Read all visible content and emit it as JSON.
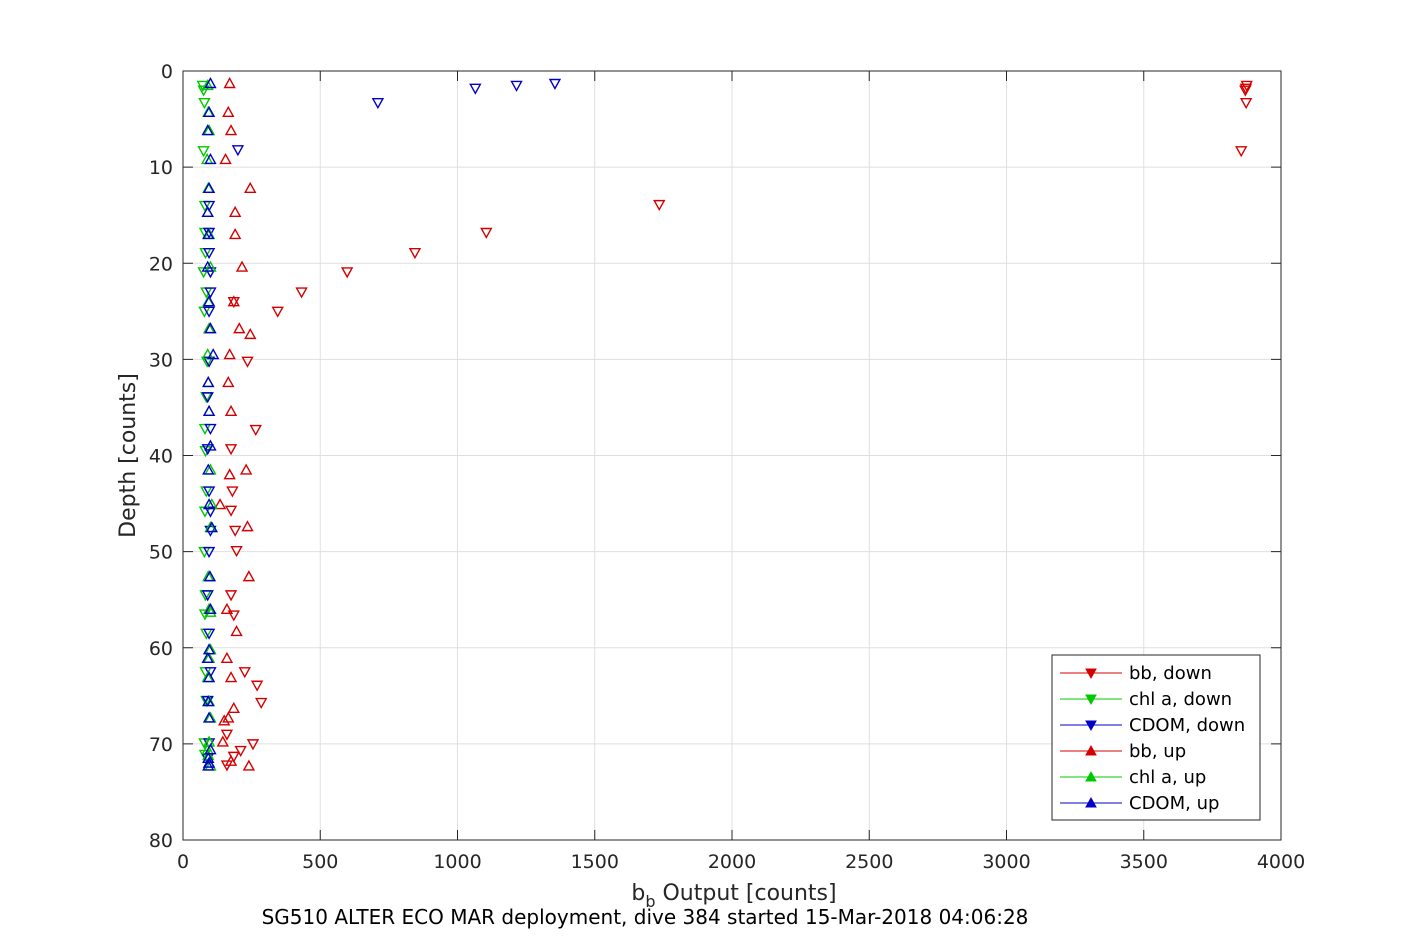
{
  "chart_data": {
    "type": "scatter",
    "title": "SG510 ALTER ECO MAR deployment, dive 384 started 15-Mar-2018 04:06:28",
    "xlabel_main": "b",
    "xlabel_sub": "b",
    "xlabel_rest": " Output [counts]",
    "ylabel": "Depth [counts]",
    "xlim": [
      0,
      4000
    ],
    "ylim": [
      0,
      80
    ],
    "y_reversed": true,
    "grid": true,
    "legend_position": "bottom-right",
    "x_ticks": [
      0,
      500,
      1000,
      1500,
      2000,
      2500,
      3000,
      3500,
      4000
    ],
    "y_ticks": [
      0,
      10,
      20,
      30,
      40,
      50,
      60,
      70,
      80
    ],
    "x_tick_labels": [
      "0",
      "500",
      "1000",
      "1500",
      "2000",
      "2500",
      "3000",
      "3500",
      "4000"
    ],
    "y_tick_labels": [
      "0",
      "10",
      "20",
      "30",
      "40",
      "50",
      "60",
      "70",
      "80"
    ],
    "series": [
      {
        "name": "bb, down",
        "color": "#d40000",
        "marker": "triangle-down",
        "x": [
          3875,
          3872,
          3870,
          3873,
          3855,
          1735,
          1105,
          845,
          598,
          432,
          345,
          185,
          235,
          265,
          175,
          180,
          175,
          195,
          190,
          175,
          185,
          225,
          270,
          285,
          255,
          210,
          185,
          160,
          160
        ],
        "y": [
          1.5,
          1.8,
          2.0,
          3.3,
          8.3,
          13.9,
          16.8,
          18.9,
          20.9,
          23.0,
          25.0,
          24.0,
          30.2,
          37.3,
          39.3,
          43.7,
          45.7,
          49.9,
          47.8,
          54.5,
          56.6,
          62.5,
          63.9,
          65.7,
          70.0,
          70.7,
          71.3,
          72.2,
          69.0
        ]
      },
      {
        "name": "chl a, down",
        "color": "#00c800",
        "marker": "triangle-down",
        "x": [
          72,
          75,
          78,
          75,
          80,
          80,
          82,
          75,
          85,
          78,
          88,
          85,
          80,
          82,
          85,
          80,
          78,
          82,
          80,
          85,
          82,
          85,
          78,
          80
        ],
        "y": [
          1.5,
          2.0,
          3.3,
          8.3,
          14.0,
          16.8,
          18.9,
          20.9,
          23.0,
          25.0,
          30.2,
          33.9,
          37.2,
          39.5,
          43.7,
          45.8,
          50.0,
          54.5,
          56.5,
          58.5,
          62.5,
          65.5,
          69.9,
          71.1
        ]
      },
      {
        "name": "CDOM, down",
        "color": "#0000c8",
        "marker": "triangle-down",
        "x": [
          1355,
          1215,
          1065,
          710,
          200,
          95,
          95,
          95,
          100,
          100,
          95,
          95,
          90,
          100,
          90,
          95,
          100,
          100,
          95,
          90,
          95,
          100,
          90,
          95,
          90
        ],
        "y": [
          1.3,
          1.5,
          1.8,
          3.3,
          8.2,
          14.0,
          16.8,
          18.9,
          20.9,
          23.0,
          25.0,
          30.2,
          33.9,
          37.2,
          39.3,
          43.7,
          45.8,
          47.8,
          50.0,
          54.5,
          58.5,
          62.5,
          65.5,
          69.9,
          71.5
        ]
      },
      {
        "name": "bb, up",
        "color": "#d40000",
        "marker": "triangle-up",
        "x": [
          170,
          165,
          175,
          155,
          245,
          190,
          190,
          215,
          185,
          205,
          245,
          170,
          165,
          175,
          230,
          170,
          235,
          135,
          240,
          195,
          160,
          160,
          175,
          150,
          185,
          165,
          240,
          145,
          175
        ],
        "y": [
          1.3,
          4.3,
          6.2,
          9.2,
          12.2,
          14.7,
          17.0,
          20.4,
          24.0,
          26.8,
          27.4,
          29.5,
          32.4,
          35.4,
          41.5,
          42.0,
          47.4,
          45.1,
          52.6,
          58.3,
          56.0,
          61.1,
          63.1,
          67.6,
          66.3,
          67.3,
          72.3,
          69.8,
          71.8
        ]
      },
      {
        "name": "chl a, up",
        "color": "#00c800",
        "marker": "triangle-up",
        "x": [
          90,
          92,
          95,
          88,
          92,
          90,
          95,
          100,
          92,
          95,
          90,
          92,
          95,
          100,
          105,
          100,
          92,
          95,
          100,
          95,
          90,
          95,
          100,
          95,
          90,
          92,
          95,
          100,
          100
        ],
        "y": [
          1.5,
          4.3,
          6.2,
          9.2,
          12.2,
          14.7,
          17.0,
          20.4,
          24.0,
          26.8,
          29.5,
          32.4,
          35.4,
          41.5,
          45.1,
          47.5,
          52.6,
          56.0,
          60.2,
          61.1,
          63.1,
          65.6,
          67.3,
          69.8,
          70.6,
          71.2,
          72.0,
          72.3,
          56.3
        ]
      },
      {
        "name": "CDOM, up",
        "color": "#0000c8",
        "marker": "triangle-up",
        "x": [
          100,
          95,
          90,
          100,
          95,
          90,
          92,
          90,
          95,
          100,
          110,
          92,
          95,
          100,
          92,
          95,
          105,
          98,
          100,
          95,
          90,
          95,
          92,
          95,
          100,
          92,
          95,
          92
        ],
        "y": [
          1.3,
          4.3,
          6.2,
          9.2,
          12.2,
          14.7,
          17.0,
          20.4,
          24.0,
          26.8,
          29.5,
          32.4,
          35.4,
          39.0,
          41.5,
          45.1,
          47.5,
          52.6,
          56.0,
          60.2,
          61.1,
          63.1,
          65.6,
          67.3,
          70.6,
          71.5,
          72.0,
          72.3
        ]
      }
    ]
  }
}
